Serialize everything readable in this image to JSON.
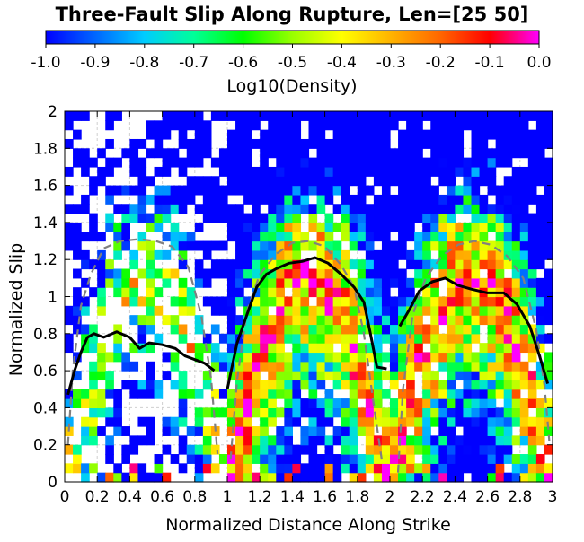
{
  "chart_data": {
    "type": "heatmap",
    "title": "Three-Fault Slip Along Rupture, Len=[25 50]",
    "xlabel": "Normalized Distance Along Strike",
    "ylabel": "Normalized Slip",
    "xlim": [
      0,
      3
    ],
    "ylim": [
      0,
      2
    ],
    "grid": true,
    "x_ticks": [
      "0",
      "0.2",
      "0.4",
      "0.6",
      "0.8",
      "1",
      "1.2",
      "1.4",
      "1.6",
      "1.8",
      "2",
      "2.2",
      "2.4",
      "2.6",
      "2.8",
      "3"
    ],
    "y_ticks": [
      "0",
      "0.2",
      "0.4",
      "0.6",
      "0.8",
      "1",
      "1.2",
      "1.4",
      "1.6",
      "1.8",
      "2"
    ],
    "colorbar": {
      "label": "Log10(Density)",
      "range": [
        -1.0,
        0.0
      ],
      "ticks": [
        "-1.0",
        "-0.9",
        "-0.8",
        "-0.7",
        "-0.6",
        "-0.5",
        "-0.4",
        "-0.3",
        "-0.2",
        "-0.1",
        "0.0"
      ],
      "colors": [
        "#0000ff",
        "#0066ff",
        "#00ccff",
        "#00ff99",
        "#00ff00",
        "#99ff00",
        "#ffff00",
        "#ffb300",
        "#ff6600",
        "#ff0000",
        "#ff00ff"
      ]
    },
    "mean_slip_curve": {
      "color": "#000000",
      "segments": [
        [
          [
            0.02,
            0.47
          ],
          [
            0.06,
            0.6
          ],
          [
            0.1,
            0.7
          ],
          [
            0.14,
            0.78
          ],
          [
            0.18,
            0.8
          ],
          [
            0.24,
            0.78
          ],
          [
            0.32,
            0.81
          ],
          [
            0.4,
            0.78
          ],
          [
            0.46,
            0.72
          ],
          [
            0.52,
            0.75
          ],
          [
            0.6,
            0.74
          ],
          [
            0.68,
            0.72
          ],
          [
            0.74,
            0.68
          ],
          [
            0.8,
            0.66
          ],
          [
            0.86,
            0.64
          ],
          [
            0.92,
            0.6
          ]
        ],
        [
          [
            1.0,
            0.5
          ],
          [
            1.06,
            0.75
          ],
          [
            1.12,
            0.9
          ],
          [
            1.18,
            1.05
          ],
          [
            1.24,
            1.12
          ],
          [
            1.3,
            1.15
          ],
          [
            1.38,
            1.18
          ],
          [
            1.46,
            1.19
          ],
          [
            1.54,
            1.21
          ],
          [
            1.62,
            1.18
          ],
          [
            1.7,
            1.12
          ],
          [
            1.78,
            1.05
          ],
          [
            1.84,
            0.97
          ],
          [
            1.88,
            0.8
          ],
          [
            1.92,
            0.62
          ],
          [
            1.98,
            0.61
          ]
        ],
        [
          [
            2.06,
            0.84
          ],
          [
            2.12,
            0.93
          ],
          [
            2.18,
            1.03
          ],
          [
            2.26,
            1.08
          ],
          [
            2.34,
            1.1
          ],
          [
            2.42,
            1.06
          ],
          [
            2.5,
            1.04
          ],
          [
            2.6,
            1.02
          ],
          [
            2.7,
            1.02
          ],
          [
            2.78,
            0.96
          ],
          [
            2.86,
            0.84
          ],
          [
            2.92,
            0.68
          ],
          [
            2.97,
            0.53
          ]
        ]
      ]
    },
    "reference_curve": {
      "color": "#808080",
      "style": "dashed",
      "segments": [
        [
          [
            0.02,
            0.2
          ],
          [
            0.05,
            0.6
          ],
          [
            0.1,
            0.95
          ],
          [
            0.16,
            1.12
          ],
          [
            0.24,
            1.26
          ],
          [
            0.34,
            1.3
          ],
          [
            0.46,
            1.31
          ],
          [
            0.56,
            1.3
          ],
          [
            0.66,
            1.27
          ],
          [
            0.76,
            1.16
          ],
          [
            0.84,
            0.9
          ],
          [
            0.9,
            0.56
          ],
          [
            0.94,
            0.15
          ]
        ],
        [
          [
            1.02,
            0.12
          ],
          [
            1.06,
            0.55
          ],
          [
            1.12,
            0.92
          ],
          [
            1.2,
            1.12
          ],
          [
            1.3,
            1.23
          ],
          [
            1.4,
            1.29
          ],
          [
            1.5,
            1.3
          ],
          [
            1.6,
            1.27
          ],
          [
            1.7,
            1.17
          ],
          [
            1.78,
            1.05
          ],
          [
            1.84,
            0.8
          ],
          [
            1.9,
            0.42
          ],
          [
            1.95,
            0.12
          ]
        ],
        [
          [
            2.05,
            0.05
          ],
          [
            2.08,
            0.5
          ],
          [
            2.14,
            0.9
          ],
          [
            2.22,
            1.1
          ],
          [
            2.32,
            1.22
          ],
          [
            2.42,
            1.28
          ],
          [
            2.52,
            1.3
          ],
          [
            2.62,
            1.28
          ],
          [
            2.72,
            1.22
          ],
          [
            2.82,
            1.1
          ],
          [
            2.9,
            0.82
          ],
          [
            2.95,
            0.52
          ],
          [
            2.98,
            0.22
          ]
        ]
      ]
    }
  }
}
